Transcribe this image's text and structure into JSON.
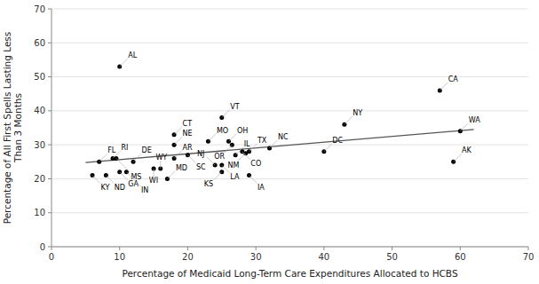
{
  "chart_data": {
    "type": "scatter",
    "xlabel": "Percentage of Medicaid Long-Term Care Expenditures Allocated to HCBS",
    "ylabel": "Percentage of All First Spells Lasting Less\nThan 3 Months",
    "xlim": [
      0,
      70
    ],
    "ylim": [
      0,
      70
    ],
    "xticks": [
      0,
      10,
      20,
      30,
      40,
      50,
      60,
      70
    ],
    "yticks": [
      0,
      10,
      20,
      30,
      40,
      50,
      60,
      70
    ],
    "grid": "y",
    "series": [
      {
        "type": "scatter",
        "color": "black",
        "labels": [
          "AL",
          "CA",
          "WA",
          "AK",
          "NY",
          "DC",
          "NC",
          "VT",
          "MO",
          "OH",
          "OR",
          "CT",
          "NE",
          "SC",
          "AR",
          "IL",
          "CO",
          "NM",
          "TX",
          "FL",
          "RI",
          "MS",
          "DE",
          "WI",
          "WY",
          "MD",
          "NJ",
          "LA",
          "KS",
          "IA",
          "KY",
          "ND",
          "GA",
          "IN"
        ],
        "x": [
          10,
          57,
          60,
          59,
          43,
          40,
          32,
          25,
          23,
          26,
          26.5,
          18,
          18,
          20,
          18,
          27,
          28,
          28.5,
          29,
          7,
          9,
          9.5,
          12,
          15,
          16,
          17,
          24,
          25,
          25,
          29,
          6,
          8,
          10,
          11
        ],
        "values": [
          53,
          46,
          34,
          25,
          36,
          28,
          29,
          38,
          31,
          31,
          30,
          33,
          30,
          27,
          26,
          27,
          28,
          27.5,
          28,
          25,
          26,
          26,
          25,
          23,
          23,
          20,
          24,
          24,
          22,
          21,
          21,
          21,
          22,
          22
        ]
      },
      {
        "type": "line",
        "color": "#555555",
        "x": [
          5,
          62
        ],
        "values": [
          24.8066,
          34.4983
        ]
      }
    ]
  }
}
